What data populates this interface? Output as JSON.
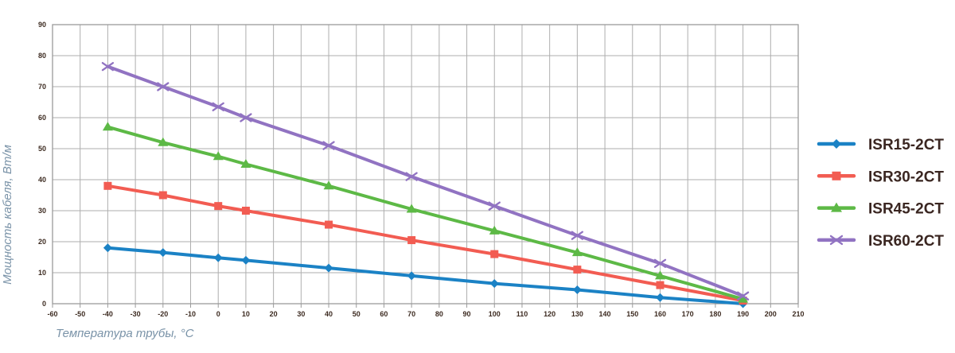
{
  "chart_data": {
    "type": "line",
    "title": "",
    "xlabel": "Температура трубы, °C",
    "ylabel": "Мощность кабеля, Вт/м",
    "xlim": [
      -60,
      210
    ],
    "ylim": [
      0,
      90
    ],
    "x_ticks": [
      -60,
      -50,
      -40,
      -30,
      -20,
      -10,
      0,
      10,
      20,
      30,
      40,
      50,
      60,
      70,
      80,
      90,
      100,
      110,
      120,
      130,
      140,
      150,
      160,
      170,
      180,
      190,
      200,
      210
    ],
    "y_ticks": [
      0,
      10,
      20,
      30,
      40,
      50,
      60,
      70,
      80,
      90
    ],
    "grid": true,
    "legend_position": "right",
    "x": [
      -40,
      -20,
      0,
      10,
      40,
      70,
      100,
      130,
      160,
      190
    ],
    "series": [
      {
        "name": "ISR15-2CT",
        "color": "#1b82c5",
        "marker": "diamond",
        "values": [
          18,
          16.5,
          14.8,
          14,
          11.5,
          9,
          6.5,
          4.5,
          2,
          0
        ]
      },
      {
        "name": "ISR30-2CT",
        "color": "#f25c52",
        "marker": "square",
        "values": [
          38,
          35,
          31.5,
          30,
          25.5,
          20.5,
          16,
          11,
          6,
          1
        ]
      },
      {
        "name": "ISR45-2CT",
        "color": "#5db946",
        "marker": "triangle",
        "values": [
          57,
          52,
          47.5,
          45,
          38,
          30.5,
          23.5,
          16.5,
          9,
          1.5
        ]
      },
      {
        "name": "ISR60-2CT",
        "color": "#9173c2",
        "marker": "x",
        "values": [
          76.5,
          70,
          63.5,
          60,
          51,
          41,
          31.5,
          22,
          13,
          2.5
        ]
      }
    ],
    "colors": {
      "grid": "#aeaeae",
      "axis": "#9a9a9a",
      "tick_label": "#3d2b21",
      "axis_title": "#7a93a8",
      "legend_text": "#3a2621",
      "background": "#ffffff"
    }
  }
}
